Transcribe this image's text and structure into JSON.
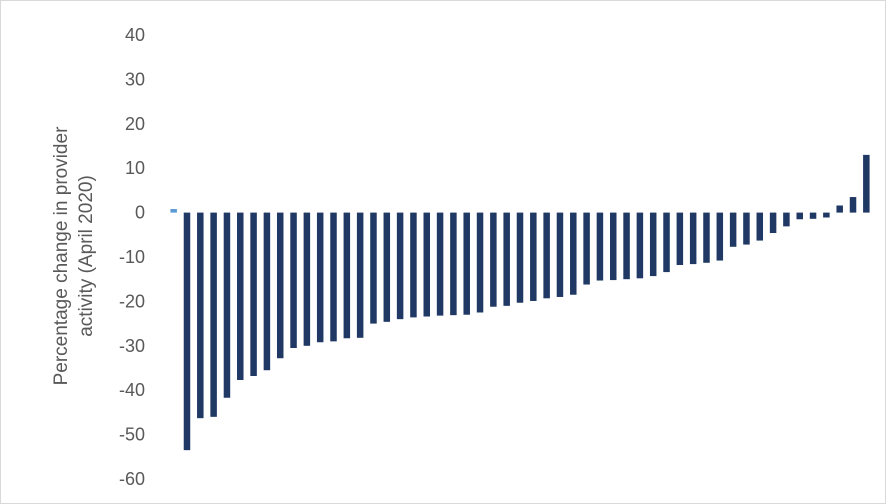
{
  "chart_data": {
    "type": "bar",
    "ylabel_lines": [
      "Percentage change in provider",
      "activity (April 2020)"
    ],
    "xlabel": "",
    "ylim": [
      -60,
      40
    ],
    "yticks": [
      40,
      30,
      20,
      10,
      0,
      -10,
      -20,
      -30,
      -40,
      -50,
      -60
    ],
    "grid": false,
    "legend": "none",
    "colors": {
      "bar": "#1f3864",
      "highlight": "#5b9bd5",
      "tick_text": "#595959",
      "axis": "#d9d9d9"
    },
    "series": [
      {
        "values": [
          0.8,
          -53.5,
          -46.3,
          -46.0,
          -41.7,
          -37.7,
          -36.8,
          -35.5,
          -32.8,
          -30.5,
          -30.0,
          -29.2,
          -29.0,
          -28.3,
          -28.2,
          -25.0,
          -24.6,
          -24.0,
          -23.6,
          -23.4,
          -23.2,
          -23.1,
          -23.0,
          -22.5,
          -21.2,
          -21.0,
          -20.3,
          -19.9,
          -19.3,
          -19.0,
          -18.5,
          -16.2,
          -15.3,
          -15.2,
          -15.0,
          -14.8,
          -14.3,
          -13.4,
          -11.8,
          -11.6,
          -11.3,
          -10.8,
          -7.7,
          -7.2,
          -6.3,
          -4.6,
          -3.1,
          -1.5,
          -1.4,
          -1.1,
          1.6,
          3.5,
          13.0
        ],
        "highlight_index": 0
      }
    ]
  }
}
